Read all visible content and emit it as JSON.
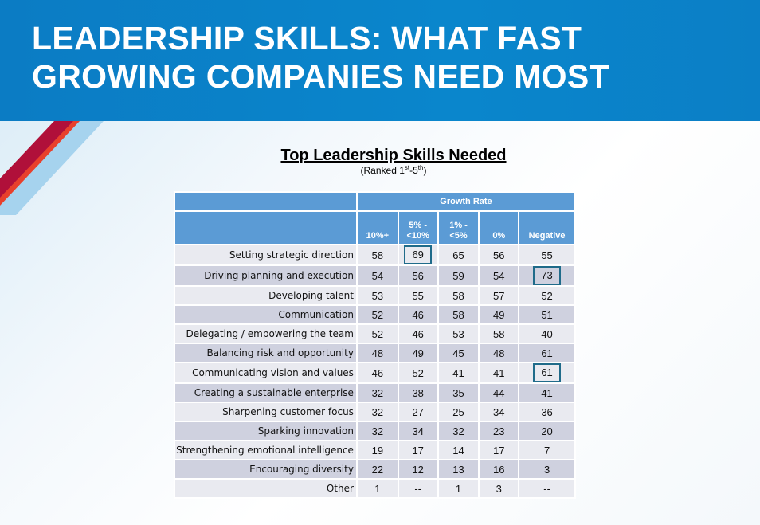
{
  "slide_title_line1": "LEADERSHIP SKILLS: WHAT FAST",
  "slide_title_line2": "GROWING COMPANIES NEED MOST",
  "table_title": "Top Leadership Skills Needed",
  "table_subtitle": {
    "prefix": "(Ranked 1",
    "sup1": "st",
    "mid": "-5",
    "sup2": "th",
    "suffix": ")"
  },
  "group_header": "Growth Rate",
  "columns": [
    [
      "10%+"
    ],
    [
      "5% -",
      "<10%"
    ],
    [
      "1% -",
      "<5%"
    ],
    [
      "0%"
    ],
    [
      "Negative"
    ]
  ],
  "rows": [
    {
      "label": "Setting strategic direction",
      "values": [
        "58",
        "69",
        "65",
        "56",
        "55"
      ]
    },
    {
      "label": "Driving planning and execution",
      "values": [
        "54",
        "56",
        "59",
        "54",
        "73"
      ]
    },
    {
      "label": "Developing talent",
      "values": [
        "53",
        "55",
        "58",
        "57",
        "52"
      ]
    },
    {
      "label": "Communication",
      "values": [
        "52",
        "46",
        "58",
        "49",
        "51"
      ]
    },
    {
      "label": "Delegating / empowering the team",
      "values": [
        "52",
        "46",
        "53",
        "58",
        "40"
      ]
    },
    {
      "label": "Balancing risk and opportunity",
      "values": [
        "48",
        "49",
        "45",
        "48",
        "61"
      ]
    },
    {
      "label": "Communicating vision and values",
      "values": [
        "46",
        "52",
        "41",
        "41",
        "61"
      ]
    },
    {
      "label": "Creating a sustainable enterprise",
      "values": [
        "32",
        "38",
        "35",
        "44",
        "41"
      ]
    },
    {
      "label": "Sharpening customer focus",
      "values": [
        "32",
        "27",
        "25",
        "34",
        "36"
      ]
    },
    {
      "label": "Sparking innovation",
      "values": [
        "32",
        "34",
        "32",
        "23",
        "20"
      ]
    },
    {
      "label": "Strengthening emotional intelligence",
      "values": [
        "19",
        "17",
        "14",
        "17",
        "7"
      ]
    },
    {
      "label": "Encouraging diversity",
      "values": [
        "22",
        "12",
        "13",
        "16",
        "3"
      ]
    },
    {
      "label": "Other",
      "values": [
        "1",
        "--",
        "1",
        "3",
        "--"
      ]
    }
  ],
  "highlighted_cells": [
    [
      0,
      1
    ],
    [
      1,
      4
    ],
    [
      6,
      4
    ]
  ],
  "colors": {
    "header_blue": "#0b7cc4",
    "table_header": "#5b9bd5",
    "highlight_border": "#1f6b8a"
  }
}
